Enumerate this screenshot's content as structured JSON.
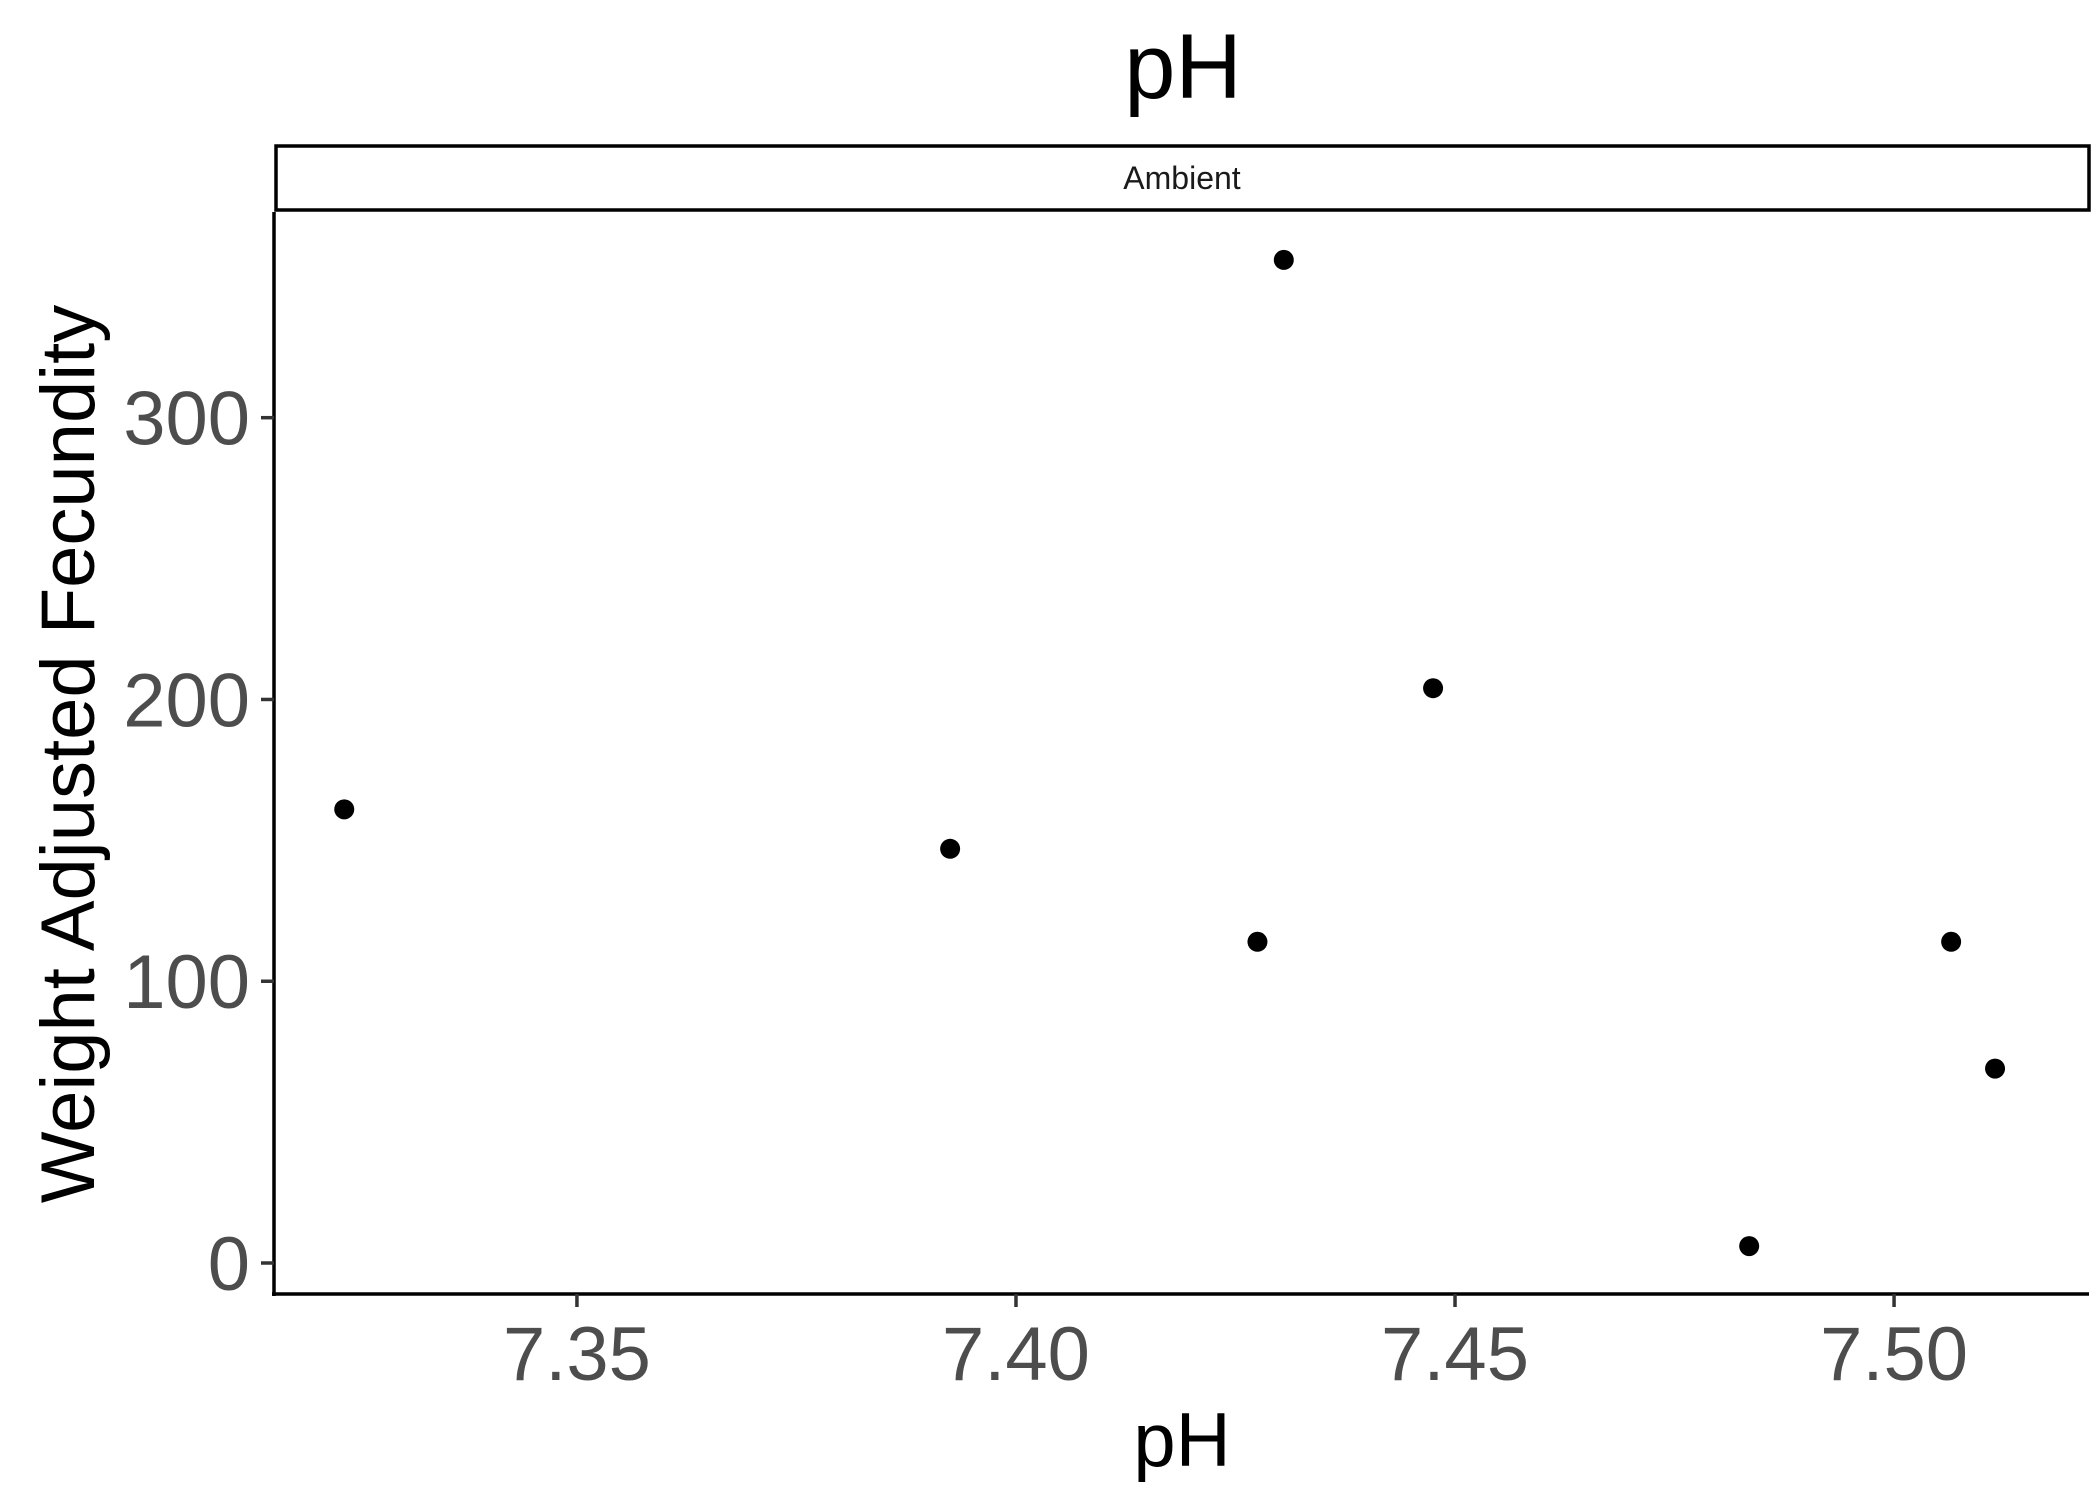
{
  "chart_data": {
    "type": "scatter",
    "title": "pH",
    "facet_label": "Ambient",
    "xlabel": "pH",
    "ylabel": "Weight Adjusted Fecundity",
    "xlim": [
      7.3155,
      7.5222
    ],
    "ylim": [
      -11,
      373
    ],
    "x_ticks": [
      7.35,
      7.4,
      7.45,
      7.5
    ],
    "x_tick_labels": [
      "7.35",
      "7.40",
      "7.45",
      "7.50"
    ],
    "y_ticks": [
      0,
      100,
      200,
      300
    ],
    "y_tick_labels": [
      "0",
      "100",
      "200",
      "300"
    ],
    "grid": false,
    "legend": "none",
    "point_color": "#000000",
    "points": [
      {
        "x": 7.3235,
        "y": 161
      },
      {
        "x": 7.3925,
        "y": 147
      },
      {
        "x": 7.4275,
        "y": 114
      },
      {
        "x": 7.4305,
        "y": 356
      },
      {
        "x": 7.4475,
        "y": 204
      },
      {
        "x": 7.4835,
        "y": 6
      },
      {
        "x": 7.5065,
        "y": 114
      },
      {
        "x": 7.5115,
        "y": 69
      }
    ]
  }
}
